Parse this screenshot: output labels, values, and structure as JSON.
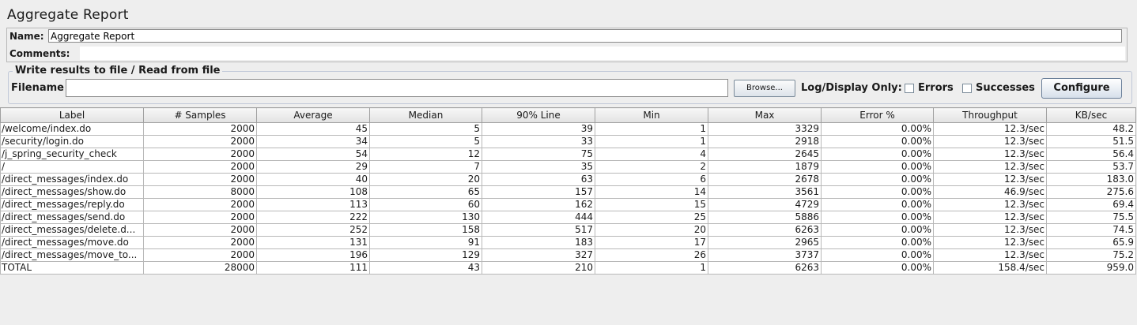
{
  "title": "Aggregate Report",
  "name_field": {
    "label": "Name:",
    "value": "Aggregate Report"
  },
  "comments": {
    "label": "Comments:",
    "value": ""
  },
  "file_panel": {
    "legend": "Write results to file / Read from file",
    "filename_label": "Filename",
    "filename_value": "",
    "browse_label": "Browse...",
    "log_display_label": "Log/Display Only:",
    "errors_label": "Errors",
    "successes_label": "Successes",
    "configure_label": "Configure"
  },
  "table": {
    "columns": [
      "Label",
      "# Samples",
      "Average",
      "Median",
      "90% Line",
      "Min",
      "Max",
      "Error %",
      "Throughput",
      "KB/sec"
    ],
    "rows": [
      [
        "/welcome/index.do",
        "2000",
        "45",
        "5",
        "39",
        "1",
        "3329",
        "0.00%",
        "12.3/sec",
        "48.2"
      ],
      [
        "/security/login.do",
        "2000",
        "34",
        "5",
        "33",
        "1",
        "2918",
        "0.00%",
        "12.3/sec",
        "51.5"
      ],
      [
        "/j_spring_security_check",
        "2000",
        "54",
        "12",
        "75",
        "4",
        "2645",
        "0.00%",
        "12.3/sec",
        "56.4"
      ],
      [
        "/",
        "2000",
        "29",
        "7",
        "35",
        "2",
        "1879",
        "0.00%",
        "12.3/sec",
        "53.7"
      ],
      [
        "/direct_messages/index.do",
        "2000",
        "40",
        "20",
        "63",
        "6",
        "2678",
        "0.00%",
        "12.3/sec",
        "183.0"
      ],
      [
        "/direct_messages/show.do",
        "8000",
        "108",
        "65",
        "157",
        "14",
        "3561",
        "0.00%",
        "46.9/sec",
        "275.6"
      ],
      [
        "/direct_messages/reply.do",
        "2000",
        "113",
        "60",
        "162",
        "15",
        "4729",
        "0.00%",
        "12.3/sec",
        "69.4"
      ],
      [
        "/direct_messages/send.do",
        "2000",
        "222",
        "130",
        "444",
        "25",
        "5886",
        "0.00%",
        "12.3/sec",
        "75.5"
      ],
      [
        "/direct_messages/delete.d...",
        "2000",
        "252",
        "158",
        "517",
        "20",
        "6263",
        "0.00%",
        "12.3/sec",
        "74.5"
      ],
      [
        "/direct_messages/move.do",
        "2000",
        "131",
        "91",
        "183",
        "17",
        "2965",
        "0.00%",
        "12.3/sec",
        "65.9"
      ],
      [
        "/direct_messages/move_to...",
        "2000",
        "196",
        "129",
        "327",
        "26",
        "3737",
        "0.00%",
        "12.3/sec",
        "75.2"
      ],
      [
        "TOTAL",
        "28000",
        "111",
        "43",
        "210",
        "1",
        "6263",
        "0.00%",
        "158.4/sec",
        "959.0"
      ]
    ]
  }
}
